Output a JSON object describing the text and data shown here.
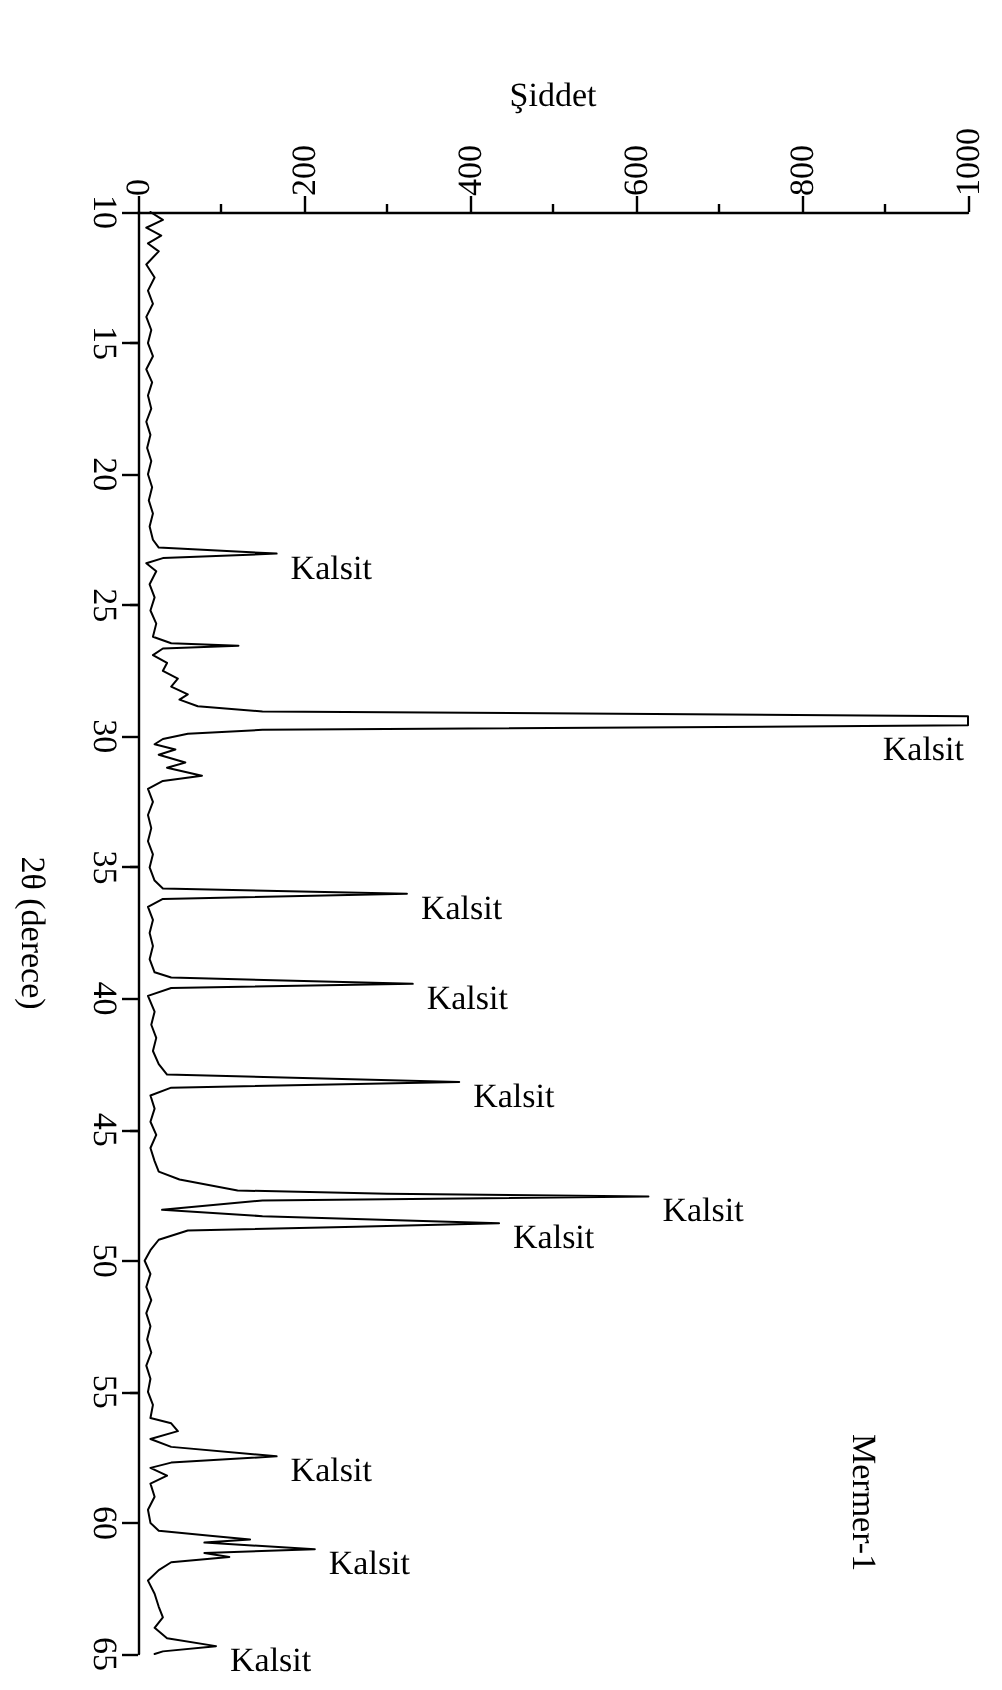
{
  "chart_data": {
    "type": "line",
    "xlabel": "Şiddet",
    "ylabel": "2θ (derece)",
    "color": "#000000",
    "marker": "none",
    "grid": false,
    "xlim": [
      0,
      1000
    ],
    "xticks": [
      0,
      200,
      400,
      600,
      800,
      1000
    ],
    "ylim": [
      65,
      10
    ],
    "yticks": [
      10,
      15,
      20,
      25,
      30,
      35,
      40,
      45,
      50,
      55,
      60,
      65
    ],
    "x": [
      15,
      30,
      10,
      28,
      12,
      25,
      10,
      20,
      12,
      18,
      10,
      16,
      12,
      18,
      10,
      17,
      12,
      16,
      10,
      15,
      11,
      16,
      12,
      17,
      13,
      18,
      14,
      18,
      25,
      167,
      30,
      10,
      22,
      14,
      20,
      15,
      22,
      18,
      40,
      121,
      30,
      18,
      35,
      30,
      48,
      40,
      60,
      50,
      72,
      150,
      1000,
      1000,
      150,
      60,
      30,
      20,
      45,
      25,
      57,
      35,
      77,
      30,
      12,
      18,
      12,
      16,
      12,
      18,
      14,
      20,
      30,
      324,
      30,
      12,
      18,
      14,
      18,
      14,
      20,
      40,
      331,
      40,
      12,
      20,
      16,
      22,
      18,
      25,
      35,
      387,
      40,
      15,
      20,
      15,
      22,
      15,
      20,
      25,
      50,
      120,
      300,
      615,
      150,
      29,
      150,
      435,
      263,
      60,
      25,
      15,
      8,
      15,
      10,
      16,
      10,
      15,
      11,
      16,
      10,
      15,
      12,
      18,
      15,
      40,
      48,
      15,
      40,
      167,
      40,
      15,
      35,
      15,
      20,
      12,
      15,
      25,
      90,
      135,
      80,
      213,
      80,
      110,
      40,
      25,
      12,
      20,
      25,
      30,
      20,
      35,
      94,
      30,
      20
    ],
    "values": [
      10,
      10.3,
      10.6,
      10.9,
      11.2,
      11.5,
      12,
      12.5,
      13,
      13.5,
      14,
      14.5,
      15,
      15.5,
      16,
      16.5,
      17,
      17.5,
      18,
      18.5,
      19,
      19.5,
      20,
      20.5,
      21,
      21.5,
      22,
      22.5,
      22.8,
      23.03,
      23.2,
      23.4,
      23.7,
      24.2,
      24.7,
      25.2,
      25.7,
      26.2,
      26.45,
      26.54,
      26.65,
      26.9,
      27.2,
      27.5,
      27.8,
      28.1,
      28.4,
      28.6,
      28.85,
      29.05,
      29.23,
      29.58,
      29.75,
      29.9,
      30.1,
      30.3,
      30.5,
      30.7,
      31.0,
      31.2,
      31.5,
      31.7,
      32,
      32.5,
      33,
      33.5,
      34,
      34.5,
      35,
      35.5,
      35.8,
      36.0,
      36.2,
      36.5,
      37,
      37.5,
      38,
      38.5,
      39.0,
      39.2,
      39.44,
      39.6,
      39.9,
      40.5,
      41,
      41.5,
      42,
      42.5,
      42.9,
      43.18,
      43.4,
      43.7,
      44.2,
      44.7,
      45.2,
      45.7,
      46.2,
      46.6,
      46.9,
      47.32,
      47.45,
      47.55,
      47.7,
      48.06,
      48.3,
      48.57,
      48.7,
      48.85,
      49.2,
      49.6,
      50,
      50.5,
      51,
      51.5,
      52,
      52.5,
      53,
      53.5,
      54,
      54.5,
      55,
      55.5,
      56,
      56.2,
      56.5,
      56.8,
      57.1,
      57.46,
      57.7,
      57.9,
      58.2,
      58.5,
      59,
      59.5,
      60,
      60.3,
      60.5,
      60.63,
      60.75,
      61.0,
      61.15,
      61.3,
      61.5,
      61.8,
      62.2,
      62.7,
      63.2,
      63.6,
      64,
      64.4,
      64.7,
      64.9,
      65
    ],
    "annotations": [
      {
        "text": "Kalsit",
        "x": 167,
        "y": 23.03
      },
      {
        "text": "Kalsit",
        "x": 1000,
        "y": 29.4
      },
      {
        "text": "Kalsit",
        "x": 324,
        "y": 36.0
      },
      {
        "text": "Kalsit",
        "x": 331,
        "y": 39.44
      },
      {
        "text": "Kalsit",
        "x": 387,
        "y": 43.18
      },
      {
        "text": "Kalsit",
        "x": 615,
        "y": 47.55
      },
      {
        "text": "Kalsit",
        "x": 435,
        "y": 48.57
      },
      {
        "text": "Kalsit",
        "x": 167,
        "y": 57.46
      },
      {
        "text": "Kalsit",
        "x": 213,
        "y": 61.0
      },
      {
        "text": "Kalsit",
        "x": 94,
        "y": 64.7
      },
      "Mermer-1"
    ]
  }
}
